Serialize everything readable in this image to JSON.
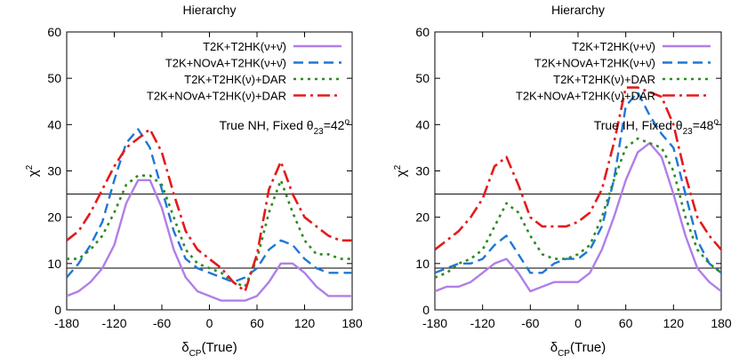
{
  "chart_data": [
    {
      "type": "line",
      "title": "Hierarchy",
      "xlabel": "δCP(True)",
      "ylabel": "χ2",
      "xlim": [
        -180,
        180
      ],
      "ylim": [
        0,
        60
      ],
      "xticks": [
        -180,
        -120,
        -60,
        0,
        60,
        120,
        180
      ],
      "yticks": [
        0,
        10,
        20,
        30,
        40,
        50,
        60
      ],
      "xtick_labels": [
        "-180",
        "-120",
        "-60",
        "0",
        "60",
        "120",
        "180"
      ],
      "ytick_labels": [
        "0",
        "10",
        "20",
        "30",
        "40",
        "50",
        "60"
      ],
      "hlines": [
        9,
        25
      ],
      "annotation": "True NH, Fixed θ23=42o",
      "legend_position": "top-right",
      "series": [
        {
          "name": "T2K+T2HK(ν+ν̄)",
          "color": "#b07fe8",
          "style": "solid",
          "x": [
            -180,
            -165,
            -150,
            -135,
            -120,
            -105,
            -90,
            -75,
            -60,
            -45,
            -30,
            -15,
            0,
            15,
            30,
            45,
            60,
            75,
            90,
            105,
            120,
            135,
            150,
            165,
            180
          ],
          "y": [
            3,
            4,
            6,
            9,
            14,
            23,
            28,
            28,
            22,
            13,
            7,
            4,
            3,
            2,
            2,
            2,
            3,
            6,
            10,
            10,
            8,
            5,
            3,
            3,
            3
          ]
        },
        {
          "name": "T2K+NOvA+T2HK(ν+ν̄)",
          "color": "#1f77d4",
          "style": "dash",
          "x": [
            -180,
            -165,
            -150,
            -135,
            -120,
            -105,
            -90,
            -75,
            -60,
            -45,
            -30,
            -15,
            0,
            15,
            30,
            45,
            60,
            75,
            90,
            105,
            120,
            135,
            150,
            165,
            180
          ],
          "y": [
            7,
            10,
            14,
            19,
            28,
            36,
            39,
            35,
            26,
            17,
            11,
            9,
            8,
            7,
            6,
            7,
            9,
            13,
            15,
            14,
            11,
            9,
            8,
            8,
            8
          ]
        },
        {
          "name": "T2K+T2HK(ν)+DAR",
          "color": "#2c8a20",
          "style": "dot",
          "x": [
            -180,
            -165,
            -150,
            -135,
            -120,
            -105,
            -90,
            -75,
            -60,
            -45,
            -30,
            -15,
            0,
            15,
            30,
            45,
            60,
            75,
            90,
            105,
            120,
            135,
            150,
            165,
            180
          ],
          "y": [
            11,
            11,
            13,
            16,
            21,
            27,
            29,
            29,
            27,
            20,
            13,
            10,
            9,
            8,
            6,
            5,
            11,
            21,
            28,
            21,
            15,
            12,
            12,
            11,
            11
          ]
        },
        {
          "name": "T2K+NOvA+T2HK(ν)+DAR",
          "color": "#e41a1c",
          "style": "dashdot",
          "x": [
            -180,
            -165,
            -150,
            -135,
            -120,
            -105,
            -90,
            -75,
            -60,
            -45,
            -30,
            -15,
            0,
            15,
            30,
            45,
            60,
            75,
            90,
            105,
            120,
            135,
            150,
            165,
            180
          ],
          "y": [
            15,
            17,
            21,
            26,
            31,
            35,
            37,
            39,
            34,
            25,
            17,
            13,
            11,
            9,
            6,
            4,
            12,
            26,
            32,
            25,
            20,
            18,
            16,
            15,
            15
          ]
        }
      ]
    },
    {
      "type": "line",
      "title": "Hierarchy",
      "xlabel": "δCP(True)",
      "ylabel": "χ2",
      "xlim": [
        -180,
        180
      ],
      "ylim": [
        0,
        60
      ],
      "xticks": [
        -180,
        -120,
        -60,
        0,
        60,
        120,
        180
      ],
      "yticks": [
        0,
        10,
        20,
        30,
        40,
        50,
        60
      ],
      "xtick_labels": [
        "-180",
        "-120",
        "-60",
        "0",
        "60",
        "120",
        "180"
      ],
      "ytick_labels": [
        "0",
        "10",
        "20",
        "30",
        "40",
        "50",
        "60"
      ],
      "hlines": [
        9,
        25
      ],
      "annotation": "True IH, Fixed θ23=48o",
      "legend_position": "top-right",
      "series": [
        {
          "name": "T2K+T2HK(ν+ν̄)",
          "color": "#b07fe8",
          "style": "solid",
          "x": [
            -180,
            -165,
            -150,
            -135,
            -120,
            -105,
            -90,
            -75,
            -60,
            -45,
            -30,
            -15,
            0,
            15,
            30,
            45,
            60,
            75,
            90,
            105,
            120,
            135,
            150,
            165,
            180
          ],
          "y": [
            4,
            5,
            5,
            6,
            8,
            10,
            11,
            8,
            4,
            5,
            6,
            6,
            6,
            8,
            13,
            20,
            28,
            34,
            36,
            33,
            25,
            16,
            9,
            6,
            4
          ]
        },
        {
          "name": "T2K+NOvA+T2HK(ν+ν̄)",
          "color": "#1f77d4",
          "style": "dash",
          "x": [
            -180,
            -165,
            -150,
            -135,
            -120,
            -105,
            -90,
            -75,
            -60,
            -45,
            -30,
            -15,
            0,
            15,
            30,
            45,
            60,
            75,
            90,
            105,
            120,
            135,
            150,
            165,
            180
          ],
          "y": [
            8,
            9,
            10,
            10,
            11,
            14,
            16,
            12,
            8,
            8,
            10,
            11,
            11,
            13,
            18,
            28,
            44,
            47,
            42,
            38,
            35,
            25,
            15,
            10,
            8
          ]
        },
        {
          "name": "T2K+T2HK(ν)+DAR",
          "color": "#2c8a20",
          "style": "dot",
          "x": [
            -180,
            -165,
            -150,
            -135,
            -120,
            -105,
            -90,
            -75,
            -60,
            -45,
            -30,
            -15,
            0,
            15,
            30,
            45,
            60,
            75,
            90,
            105,
            120,
            135,
            150,
            165,
            180
          ],
          "y": [
            7,
            8,
            10,
            11,
            13,
            18,
            23,
            21,
            16,
            12,
            11,
            11,
            12,
            14,
            20,
            28,
            35,
            37,
            36,
            35,
            30,
            20,
            13,
            10,
            8
          ]
        },
        {
          "name": "T2K+NOvA+T2HK(ν)+DAR",
          "color": "#e41a1c",
          "style": "dashdot",
          "x": [
            -180,
            -165,
            -150,
            -135,
            -120,
            -105,
            -90,
            -75,
            -60,
            -45,
            -30,
            -15,
            0,
            15,
            30,
            45,
            60,
            75,
            90,
            105,
            120,
            135,
            150,
            165,
            180
          ],
          "y": [
            13,
            15,
            17,
            20,
            24,
            31,
            33,
            27,
            20,
            18,
            18,
            18,
            19,
            21,
            26,
            36,
            48,
            48,
            47,
            46,
            40,
            29,
            20,
            16,
            13
          ]
        }
      ]
    }
  ]
}
